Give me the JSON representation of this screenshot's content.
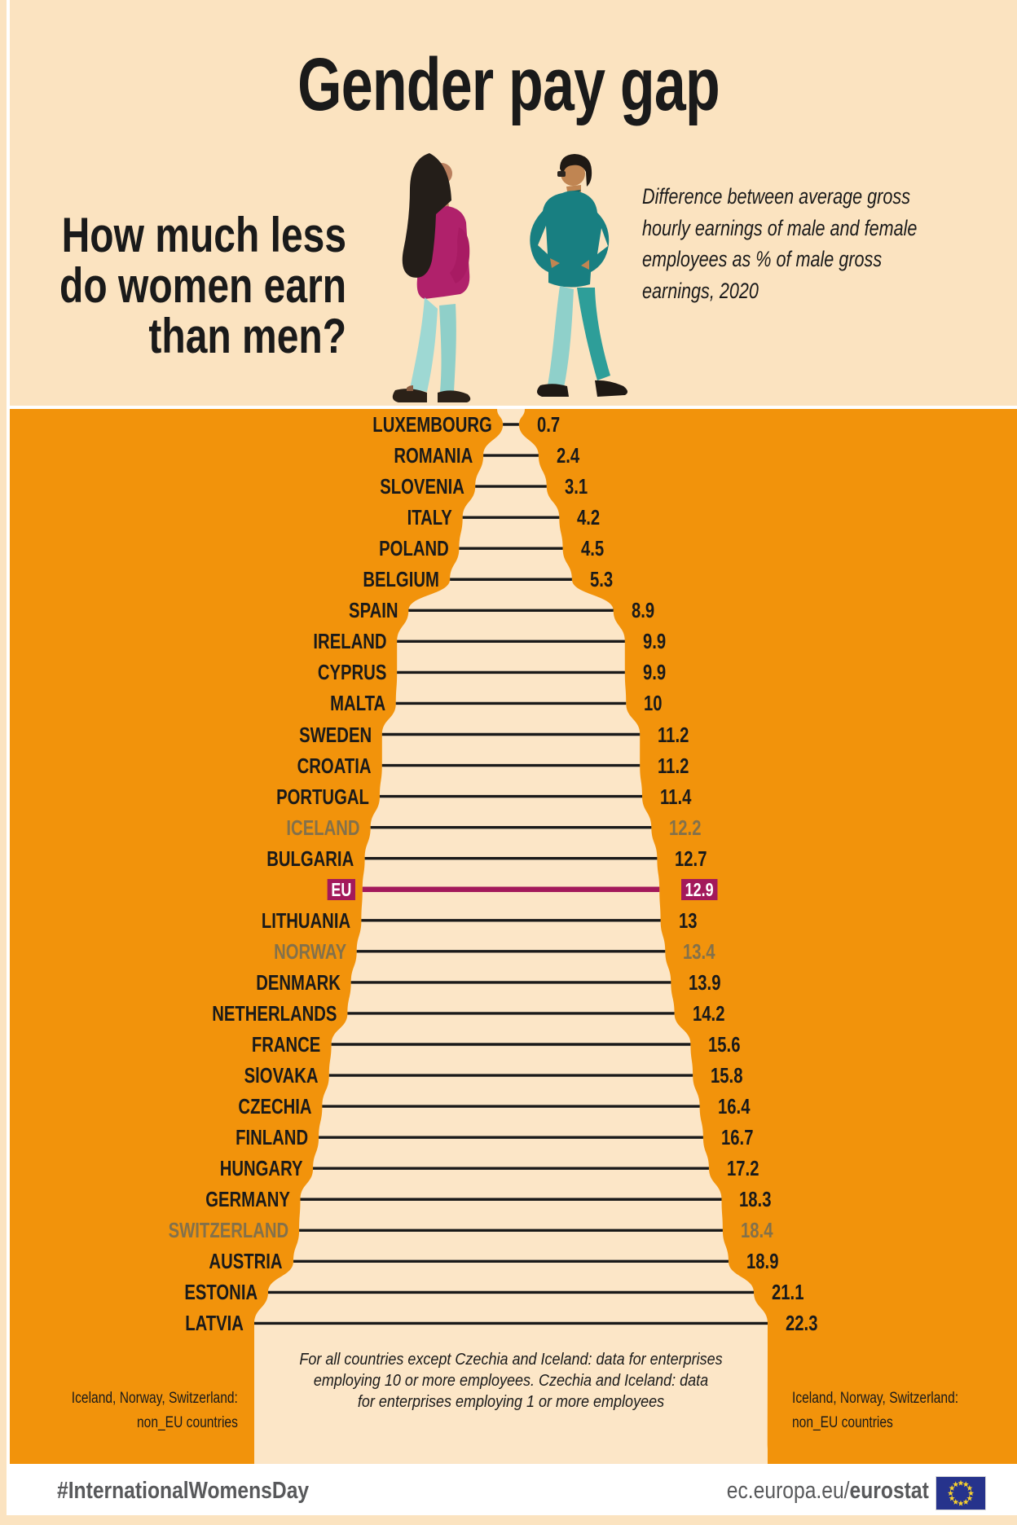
{
  "title": "Gender pay gap",
  "header": {
    "question_lines": [
      "How much less",
      "do women earn",
      "than men?"
    ],
    "description_lines": [
      "Difference between average gross",
      "hourly earnings of male and female",
      "employees as % of male gross",
      "earnings, 2020"
    ]
  },
  "chart_data": {
    "type": "bar",
    "orientation": "horizontal-funnel",
    "title": "Gender pay gap",
    "unit": "% of male gross hourly earnings",
    "year": "2020",
    "xlim": [
      0,
      22.3
    ],
    "rows": [
      {
        "label": "LUXEMBOURG",
        "value": 0.7,
        "group": "eu"
      },
      {
        "label": "ROMANIA",
        "value": 2.4,
        "group": "eu"
      },
      {
        "label": "SLOVENIA",
        "value": 3.1,
        "group": "eu"
      },
      {
        "label": "ITALY",
        "value": 4.2,
        "group": "eu"
      },
      {
        "label": "POLAND",
        "value": 4.5,
        "group": "eu"
      },
      {
        "label": "BELGIUM",
        "value": 5.3,
        "group": "eu"
      },
      {
        "label": "SPAIN",
        "value": 8.9,
        "group": "eu"
      },
      {
        "label": "IRELAND",
        "value": 9.9,
        "group": "eu"
      },
      {
        "label": "CYPRUS",
        "value": 9.9,
        "group": "eu"
      },
      {
        "label": "MALTA",
        "value": 10,
        "group": "eu"
      },
      {
        "label": "SWEDEN",
        "value": 11.2,
        "group": "eu"
      },
      {
        "label": "CROATIA",
        "value": 11.2,
        "group": "eu"
      },
      {
        "label": "PORTUGAL",
        "value": 11.4,
        "group": "eu"
      },
      {
        "label": "ICELAND",
        "value": 12.2,
        "group": "non-eu"
      },
      {
        "label": "BULGARIA",
        "value": 12.7,
        "group": "eu"
      },
      {
        "label": "EU",
        "value": 12.9,
        "group": "eu-average"
      },
      {
        "label": "LITHUANIA",
        "value": 13,
        "group": "eu"
      },
      {
        "label": "NORWAY",
        "value": 13.4,
        "group": "non-eu"
      },
      {
        "label": "DENMARK",
        "value": 13.9,
        "group": "eu"
      },
      {
        "label": "NETHERLANDS",
        "value": 14.2,
        "group": "eu"
      },
      {
        "label": "FRANCE",
        "value": 15.6,
        "group": "eu"
      },
      {
        "label": "SlOVAKA",
        "value": 15.8,
        "group": "eu"
      },
      {
        "label": "CZECHIA",
        "value": 16.4,
        "group": "eu"
      },
      {
        "label": "FINLAND",
        "value": 16.7,
        "group": "eu"
      },
      {
        "label": "HUNGARY",
        "value": 17.2,
        "group": "eu"
      },
      {
        "label": "GERMANY",
        "value": 18.3,
        "group": "eu"
      },
      {
        "label": "SWITZERLAND",
        "value": 18.4,
        "group": "non-eu"
      },
      {
        "label": "AUSTRIA",
        "value": 18.9,
        "group": "eu"
      },
      {
        "label": "ESTONIA",
        "value": 21.1,
        "group": "eu"
      },
      {
        "label": "LATVIA",
        "value": 22.3,
        "group": "eu"
      }
    ],
    "highlight": {
      "label": "EU",
      "value": 12.9
    },
    "non_eu_countries": [
      "ICELAND",
      "NORWAY",
      "SWITZERLAND"
    ]
  },
  "notes": {
    "funnel_note_lines": [
      "For all countries except Czechia and Iceland: data for enterprises",
      "employing 10 or more employees. Czechia and Iceland: data",
      "for enterprises employing 1 or more employees"
    ],
    "side_note_lines": [
      "Iceland, Norway, Switzerland:",
      "non_EU countries"
    ]
  },
  "footer": {
    "hashtag": "#InternationalWomensDay",
    "url_regular": "ec.europa.eu/",
    "url_bold": "eurostat",
    "flag": "eu-flag"
  },
  "colors": {
    "orange": "#F2930B",
    "cream": "#FBE3C0",
    "funnel": "#FCE6C7",
    "eu_magenta": "#A3195B",
    "non_eu_gray": "#83714B",
    "text": "#1A1A1A",
    "footer_gray": "#58595B",
    "flag_blue": "#26338C",
    "star_yellow": "#F8D12E"
  }
}
